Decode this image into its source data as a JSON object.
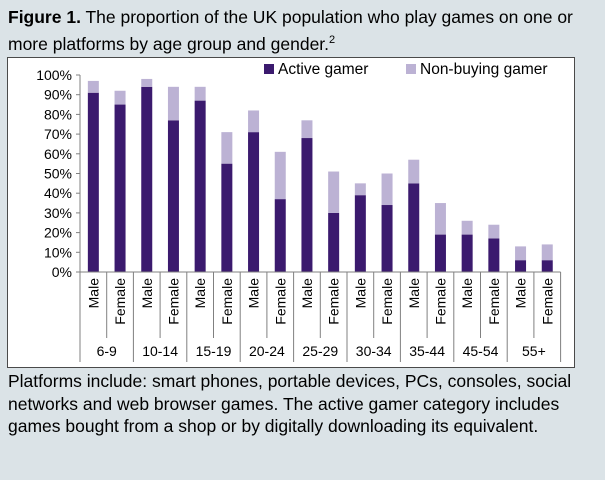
{
  "figure": {
    "label": "Figure 1.",
    "caption": " The proportion of the UK population who play games on one or more platforms by age group and gender.",
    "superscript": "2"
  },
  "footnote": "Platforms include: smart phones, portable devices, PCs, consoles, social networks and web browser games. The active gamer category includes games bought from a shop or by digitally downloading its equivalent.",
  "colors": {
    "active": "#3b1a6e",
    "non_buying": "#bcb2d4",
    "axis": "#808080"
  },
  "chart_data": {
    "type": "bar",
    "stacked": true,
    "title": "",
    "xlabel": "",
    "ylabel": "",
    "ylim": [
      0,
      100
    ],
    "yticks": [
      "0%",
      "10%",
      "20%",
      "30%",
      "40%",
      "50%",
      "60%",
      "70%",
      "80%",
      "90%",
      "100%"
    ],
    "legend_position": "top-right",
    "categories": [
      "Male",
      "Female",
      "Male",
      "Female",
      "Male",
      "Female",
      "Male",
      "Female",
      "Male",
      "Female",
      "Male",
      "Female",
      "Male",
      "Female",
      "Male",
      "Female",
      "Male",
      "Female"
    ],
    "groups": [
      "6-9",
      "10-14",
      "15-19",
      "20-24",
      "25-29",
      "30-34",
      "35-44",
      "45-54",
      "55+"
    ],
    "series": [
      {
        "name": "Active gamer",
        "values": [
          91,
          85,
          94,
          77,
          87,
          55,
          71,
          37,
          68,
          30,
          39,
          34,
          45,
          19,
          19,
          17,
          6,
          6
        ]
      },
      {
        "name": "Non-buying gamer",
        "values": [
          6,
          7,
          4,
          17,
          7,
          16,
          11,
          24,
          9,
          21,
          6,
          16,
          12,
          16,
          7,
          7,
          7,
          8
        ]
      }
    ]
  }
}
